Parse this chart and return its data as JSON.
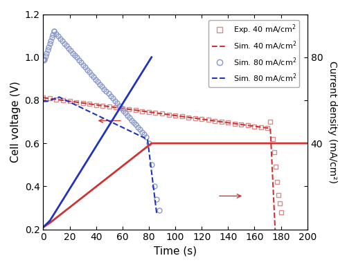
{
  "xlabel": "Time (s)",
  "ylabel_left": "Cell voltage (V)",
  "ylabel_right": "Current density (mA/cm²)",
  "xlim": [
    0,
    200
  ],
  "ylim_left": [
    0.2,
    1.2
  ],
  "ylim_right": [
    0,
    100
  ],
  "red_color": "#cc3333",
  "red_light": "#dd8888",
  "blue_color": "#2233bb",
  "blue_light": "#8899cc",
  "xticks": [
    0,
    20,
    40,
    60,
    80,
    100,
    120,
    140,
    160,
    180,
    200
  ],
  "yticks_left": [
    0.2,
    0.4,
    0.6,
    0.8,
    1.0,
    1.2
  ],
  "yticks_right": [
    0,
    20,
    40,
    60,
    80,
    100
  ],
  "ytick_labels_right": [
    "",
    "",
    "40",
    "",
    "80",
    ""
  ]
}
